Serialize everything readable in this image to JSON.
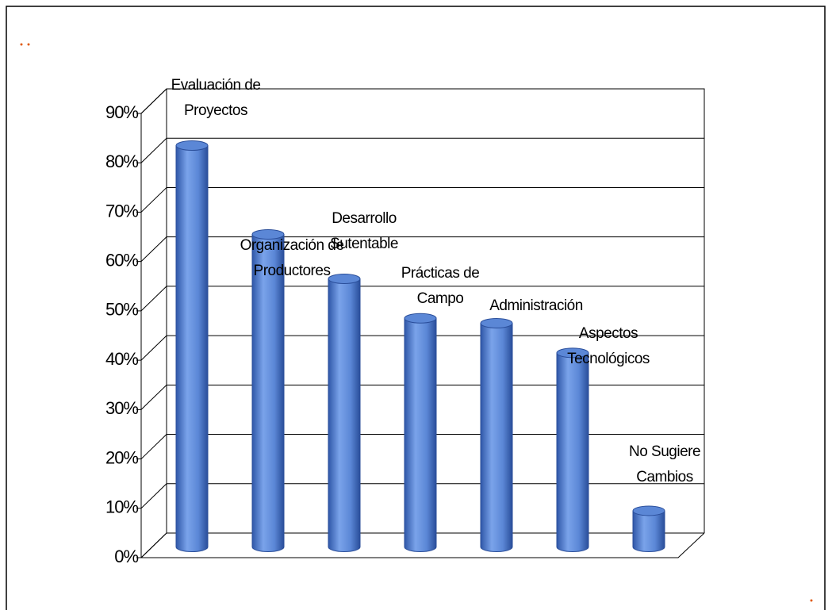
{
  "chart_data": {
    "type": "bar",
    "categories": [
      "Evaluación de\nProyectos",
      "Organización de\nProductores",
      "Desarrollo\nSutentable",
      "Prácticas de\nCampo",
      "Administración",
      "Aspectos\nTecnológicos",
      "No Sugiere\nCambios"
    ],
    "values": [
      81,
      63,
      54,
      46,
      45,
      39,
      7
    ],
    "color": "#5b87d6",
    "ylim": [
      0,
      90
    ],
    "yticks": [
      {
        "value": 0,
        "label": "0%"
      },
      {
        "value": 10,
        "label": "10%"
      },
      {
        "value": 20,
        "label": "20%"
      },
      {
        "value": 30,
        "label": "30%"
      },
      {
        "value": 40,
        "label": "40%"
      },
      {
        "value": 50,
        "label": "50%"
      },
      {
        "value": 60,
        "label": "60%"
      },
      {
        "value": 70,
        "label": "70%"
      },
      {
        "value": 80,
        "label": "80%"
      },
      {
        "value": 90,
        "label": "90%"
      }
    ],
    "grid": true
  }
}
